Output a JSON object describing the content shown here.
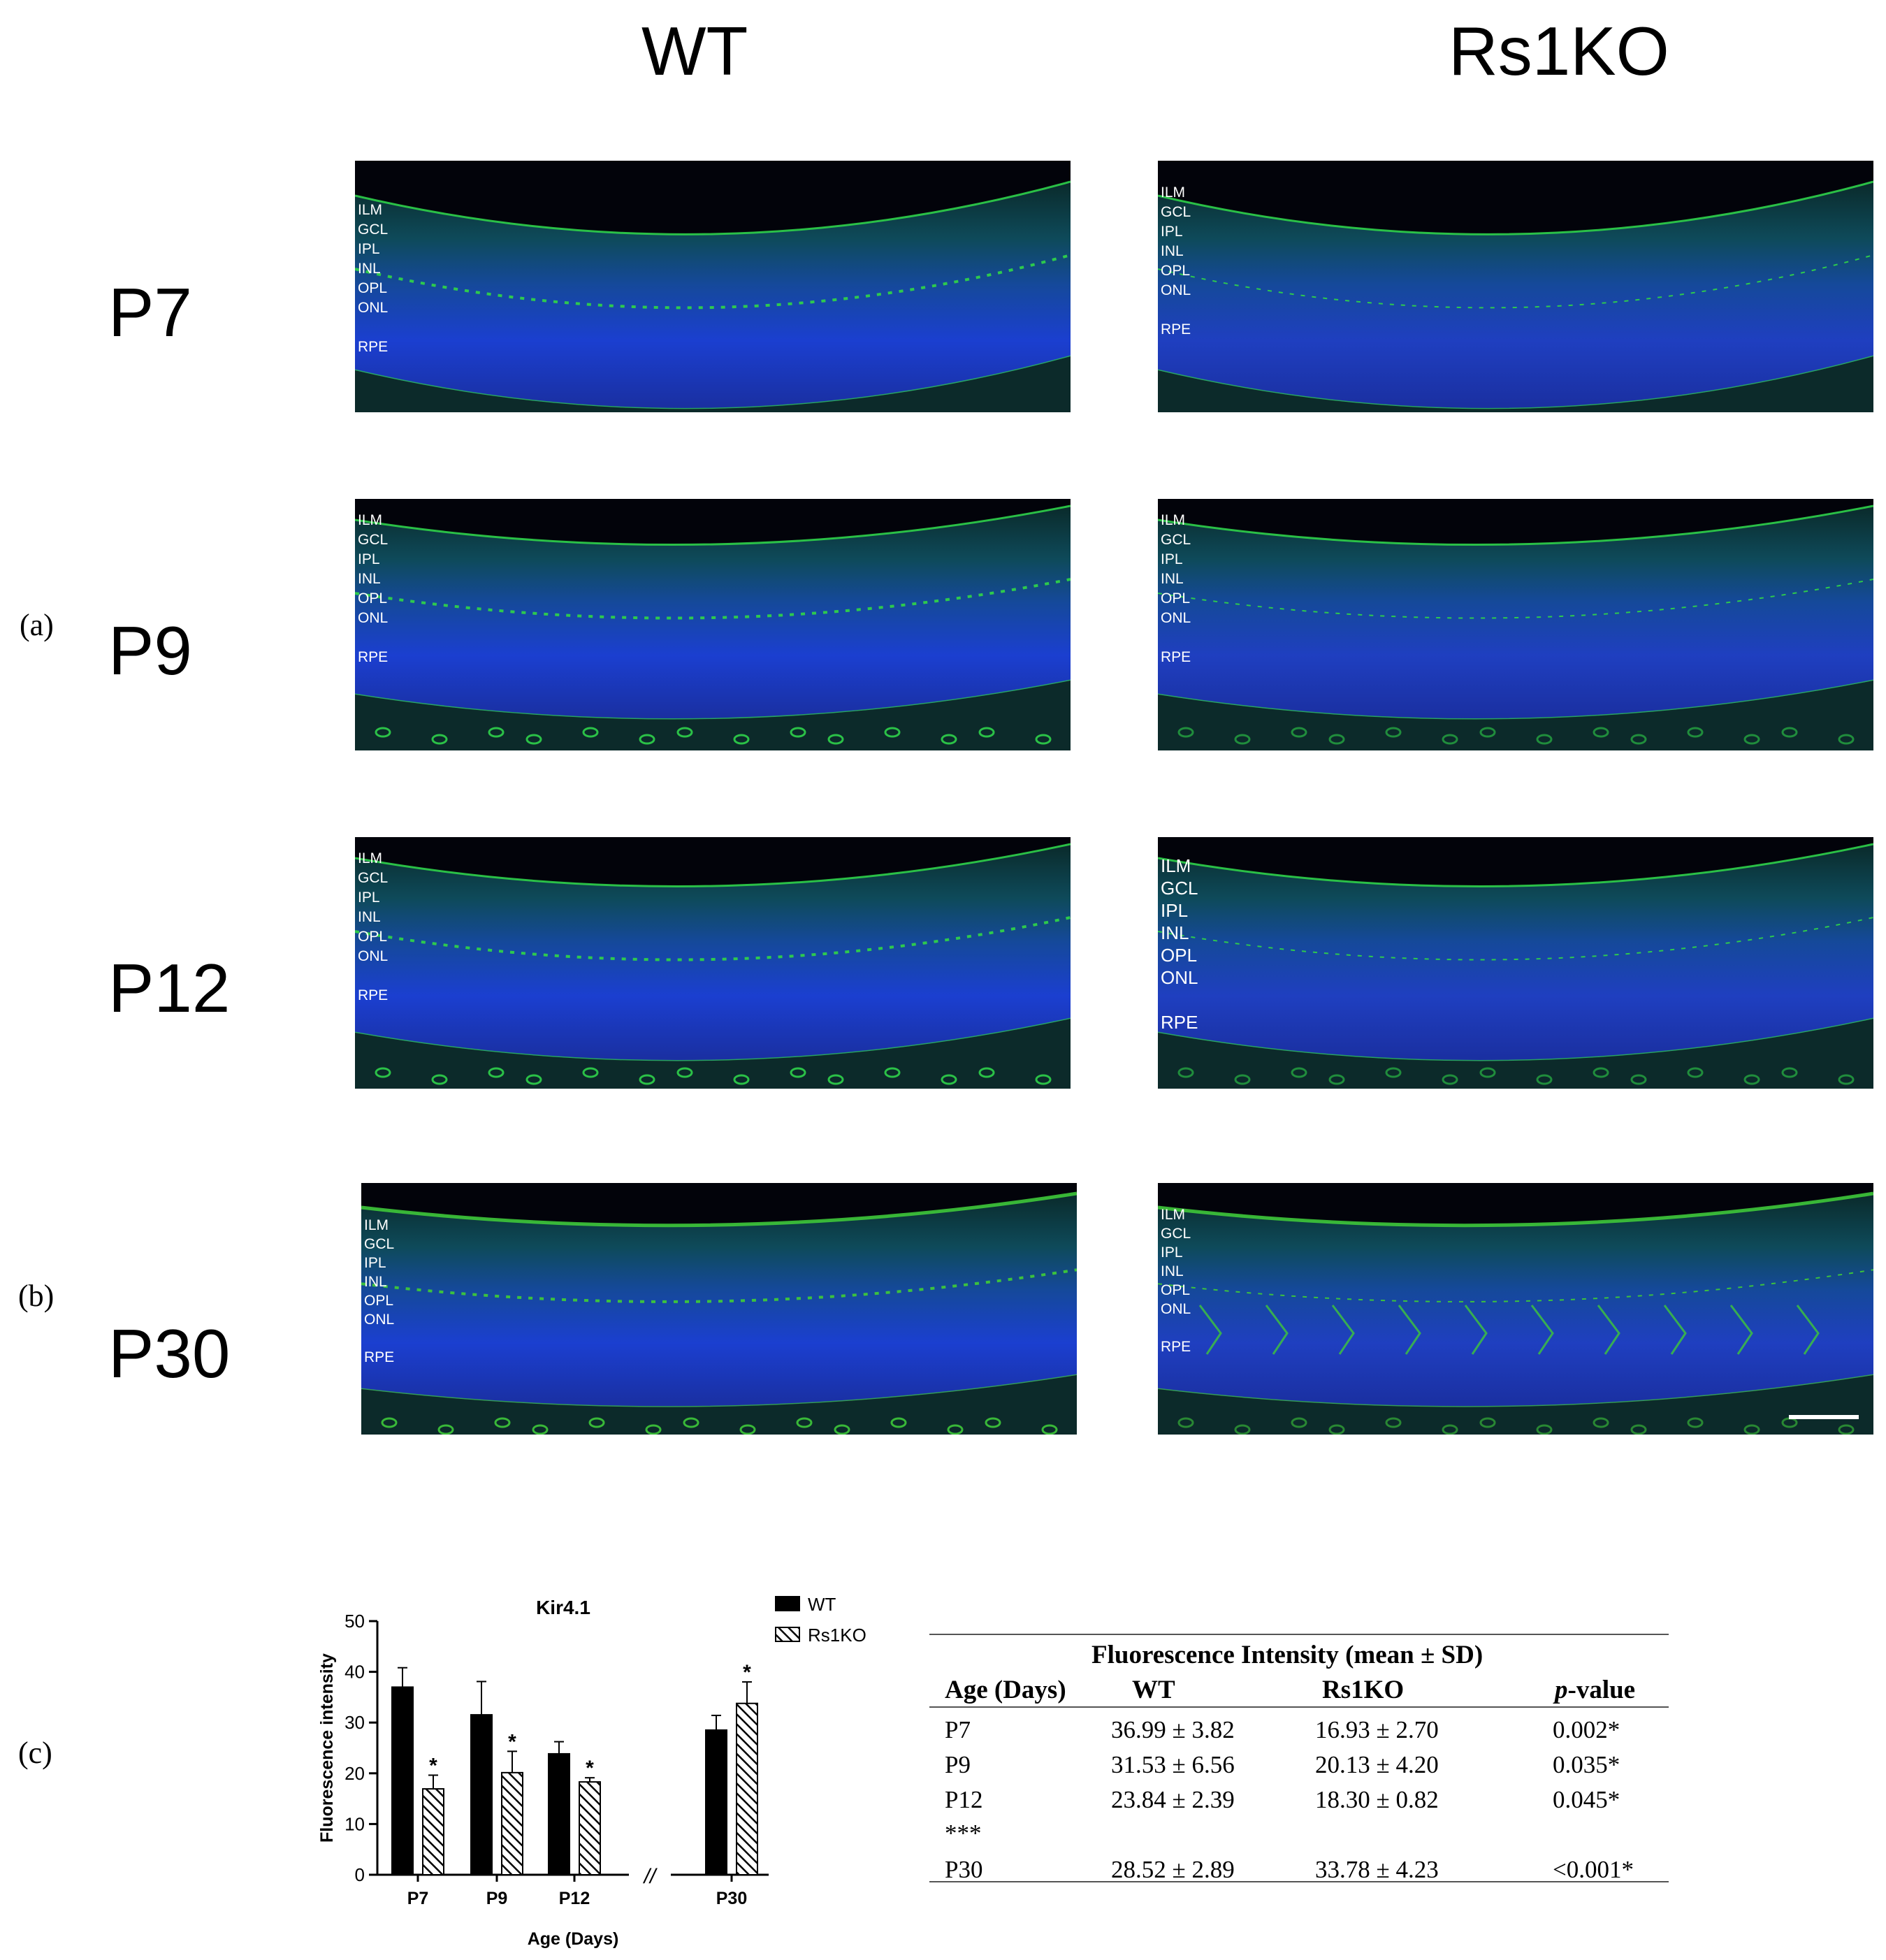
{
  "figure": {
    "column_headers": [
      "WT",
      "Rs1KO"
    ],
    "row_labels": [
      "P7",
      "P9",
      "P12",
      "P30"
    ],
    "panel_letters": [
      "(a)",
      "(b)",
      "(c)"
    ],
    "layer_labels": [
      "ILM",
      "GCL",
      "IPL",
      "INL",
      "OPL",
      "ONL",
      "RPE"
    ]
  },
  "chart_data": {
    "type": "bar",
    "title": "Kir4.1",
    "xlabel": "Age (Days)",
    "ylabel": "Fluorescence intensity",
    "ylim": [
      0,
      50
    ],
    "yticks": [
      "0",
      "10",
      "20",
      "30",
      "40",
      "50"
    ],
    "categories": [
      "P7",
      "P9",
      "P12",
      "P30"
    ],
    "axis_break": "//",
    "legend_position": "top-right",
    "series": [
      {
        "name": "WT",
        "values": [
          36.99,
          31.53,
          23.84,
          28.52
        ],
        "sd": [
          3.82,
          6.56,
          2.39,
          2.89
        ],
        "fill": "solid",
        "color": "#000000"
      },
      {
        "name": "Rs1KO",
        "values": [
          16.93,
          20.13,
          18.3,
          33.78
        ],
        "sd": [
          2.7,
          4.2,
          0.82,
          4.23
        ],
        "fill": "hatched",
        "color": "#000000"
      }
    ],
    "significance_marks": [
      "*",
      "*",
      "*",
      "*"
    ]
  },
  "table": {
    "caption": "Fluorescence Intensity (mean ± SD)",
    "headers": [
      "Age (Days)",
      "WT",
      "Rs1KO",
      "p-value"
    ],
    "rows": [
      [
        "P7",
        "36.99 ± 3.82",
        "16.93 ± 2.70",
        "0.002*"
      ],
      [
        "P9",
        "31.53 ± 6.56",
        "20.13 ± 4.20",
        "0.035*"
      ],
      [
        "P12",
        "23.84 ± 2.39",
        "18.30 ± 0.82",
        "0.045*"
      ],
      [
        "***",
        "",
        "",
        ""
      ],
      [
        "P30",
        "28.52 ± 2.89",
        "33.78 ± 4.23",
        "<0.001*"
      ]
    ]
  }
}
